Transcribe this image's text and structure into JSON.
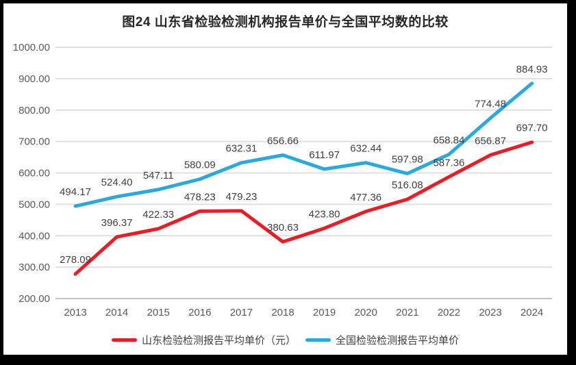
{
  "window": {
    "frame_color": "#000000",
    "canvas_color": "#ffffff"
  },
  "title": {
    "text": "图24  山东省检验检测机构报告单价与全国平均数的比较",
    "color": "#262626"
  },
  "chart_data": {
    "type": "line",
    "x": [
      "2013",
      "2014",
      "2015",
      "2016",
      "2017",
      "2018",
      "2019",
      "2020",
      "2021",
      "2022",
      "2023",
      "2024"
    ],
    "series": [
      {
        "name": "山东检验检测报告平均单价（元）",
        "color": "#ec1c24",
        "values": [
          278.09,
          396.37,
          422.33,
          478.23,
          479.23,
          380.63,
          423.8,
          477.36,
          516.08,
          587.36,
          656.87,
          697.7
        ]
      },
      {
        "name": "全国检验检测报告平均单价",
        "color": "#29a9e0",
        "values": [
          494.17,
          524.4,
          547.11,
          580.09,
          632.31,
          656.66,
          611.97,
          632.44,
          597.98,
          658.84,
          774.48,
          884.93
        ]
      }
    ],
    "ylim": [
      200,
      1000
    ],
    "ytick_labels": [
      "200.00",
      "300.00",
      "400.00",
      "500.00",
      "600.00",
      "700.00",
      "800.00",
      "900.00",
      "1000.00"
    ],
    "grid": true,
    "data_labels": true,
    "legend_position": "bottom"
  },
  "style": {
    "gridline_color": "#e0e0e0",
    "axis_line_color": "#c4c4c4",
    "tick_label_color": "#595959",
    "data_label_color": "#3f3f3f",
    "line_width": 5
  }
}
